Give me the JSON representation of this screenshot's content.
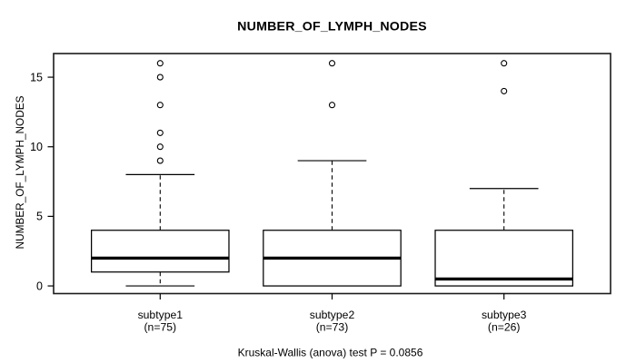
{
  "chart_data": {
    "type": "boxplot",
    "title": "NUMBER_OF_LYMPH_NODES",
    "ylabel": "NUMBER_OF_LYMPH_NODES",
    "xlabel": "",
    "ylim": [
      -0.55,
      16.7
    ],
    "yticks": [
      0,
      5,
      10,
      15
    ],
    "grid": false,
    "legend": "none",
    "annotation": "Kruskal-Wallis (anova) test P = 0.0856",
    "groups": [
      {
        "label": "subtype1",
        "sublabel": "(n=75)",
        "n": 75,
        "whisker_low": 0,
        "q1": 1,
        "median": 2,
        "q3": 4,
        "whisker_high": 8,
        "outliers": [
          9,
          10,
          11,
          13,
          15,
          16
        ]
      },
      {
        "label": "subtype2",
        "sublabel": "(n=73)",
        "n": 73,
        "whisker_low": 0,
        "q1": 0,
        "median": 2,
        "q3": 4,
        "whisker_high": 9,
        "outliers": [
          13,
          16
        ]
      },
      {
        "label": "subtype3",
        "sublabel": "(n=26)",
        "n": 26,
        "whisker_low": 0,
        "q1": 0,
        "median": 0.5,
        "q3": 4,
        "whisker_high": 7,
        "outliers": [
          14,
          16
        ]
      }
    ],
    "colors": {
      "line": "#000000",
      "box_fill": "#ffffff",
      "frame": "#1c1c1c",
      "background": "#ffffff"
    }
  }
}
